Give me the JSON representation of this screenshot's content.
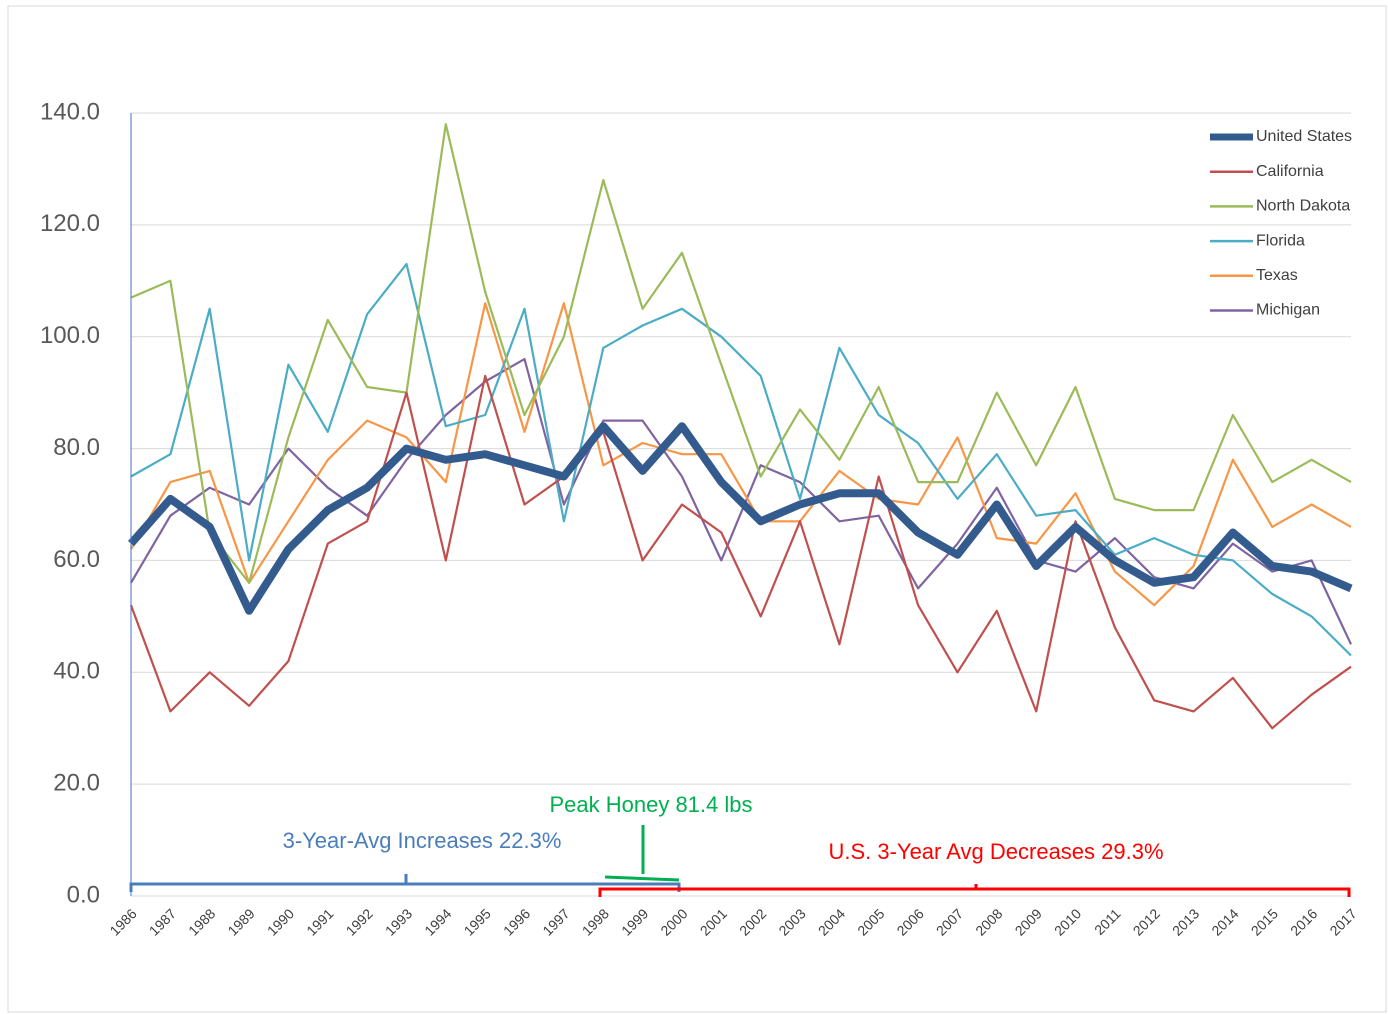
{
  "chart_data": {
    "type": "line",
    "categories": [
      "1986",
      "1987",
      "1988",
      "1989",
      "1990",
      "1991",
      "1992",
      "1993",
      "1994",
      "1995",
      "1996",
      "1997",
      "1998",
      "1999",
      "2000",
      "2001",
      "2002",
      "2003",
      "2004",
      "2005",
      "2006",
      "2007",
      "2008",
      "2009",
      "2010",
      "2011",
      "2012",
      "2013",
      "2014",
      "2015",
      "2016",
      "2017"
    ],
    "series": [
      {
        "name": "United States",
        "color": "#335b8e",
        "values": [
          63,
          71,
          66,
          51,
          62,
          69,
          73,
          80,
          78,
          79,
          77,
          75,
          84,
          76,
          84,
          74,
          67,
          70,
          72,
          72,
          65,
          61,
          70,
          59,
          66,
          60,
          56,
          57,
          65,
          59,
          58,
          55
        ]
      },
      {
        "name": "California",
        "color": "#c0504d",
        "values": [
          52,
          33,
          40,
          34,
          42,
          63,
          67,
          90,
          60,
          93,
          70,
          75,
          83,
          60,
          70,
          65,
          50,
          67,
          45,
          75,
          52,
          40,
          51,
          33,
          67,
          48,
          35,
          33,
          39,
          30,
          36,
          41
        ]
      },
      {
        "name": "North Dakota",
        "color": "#9bbb59",
        "values": [
          107,
          110,
          65,
          56,
          82,
          103,
          91,
          90,
          138,
          108,
          86,
          100,
          128,
          105,
          115,
          95,
          75,
          87,
          78,
          91,
          74,
          74,
          90,
          77,
          91,
          71,
          69,
          69,
          86,
          74,
          78,
          74
        ]
      },
      {
        "name": "Florida",
        "color": "#4bacc6",
        "values": [
          75,
          79,
          105,
          60,
          95,
          83,
          104,
          113,
          84,
          86,
          105,
          67,
          98,
          102,
          105,
          100,
          93,
          71,
          98,
          86,
          81,
          71,
          79,
          68,
          69,
          61,
          64,
          61,
          60,
          54,
          50,
          43
        ]
      },
      {
        "name": "Texas",
        "color": "#f79646",
        "values": [
          62,
          74,
          76,
          56,
          67,
          78,
          85,
          82,
          74,
          106,
          83,
          106,
          77,
          81,
          79,
          79,
          67,
          67,
          76,
          71,
          70,
          82,
          64,
          63,
          72,
          58,
          52,
          59,
          78,
          66,
          70,
          66
        ]
      },
      {
        "name": "Michigan",
        "color": "#8064a2",
        "values": [
          56,
          68,
          73,
          70,
          80,
          73,
          68,
          78,
          86,
          92,
          96,
          70,
          85,
          85,
          75,
          60,
          77,
          74,
          67,
          68,
          55,
          63,
          73,
          60,
          58,
          64,
          57,
          55,
          63,
          58,
          60,
          45
        ]
      }
    ],
    "ylim": [
      0,
      140
    ],
    "yticks": [
      {
        "value": 0,
        "label": "0.0"
      },
      {
        "value": 20,
        "label": "20.0"
      },
      {
        "value": 40,
        "label": "40.0"
      },
      {
        "value": 60,
        "label": "60.0"
      },
      {
        "value": 80,
        "label": "80.0"
      },
      {
        "value": 100,
        "label": "100.0"
      },
      {
        "value": 120,
        "label": "120.0"
      },
      {
        "value": 140,
        "label": "140.0"
      }
    ],
    "grid": true,
    "legend": "top-right",
    "annotations": [
      {
        "text": "3-Year-Avg Increases 22.3%",
        "color": "#4a7ebb"
      },
      {
        "text": "Peak Honey 81.4 lbs",
        "color": "#00b050"
      },
      {
        "text": "U.S. 3-Year Avg Decreases 29.3%",
        "color": "#ff0000"
      }
    ]
  }
}
